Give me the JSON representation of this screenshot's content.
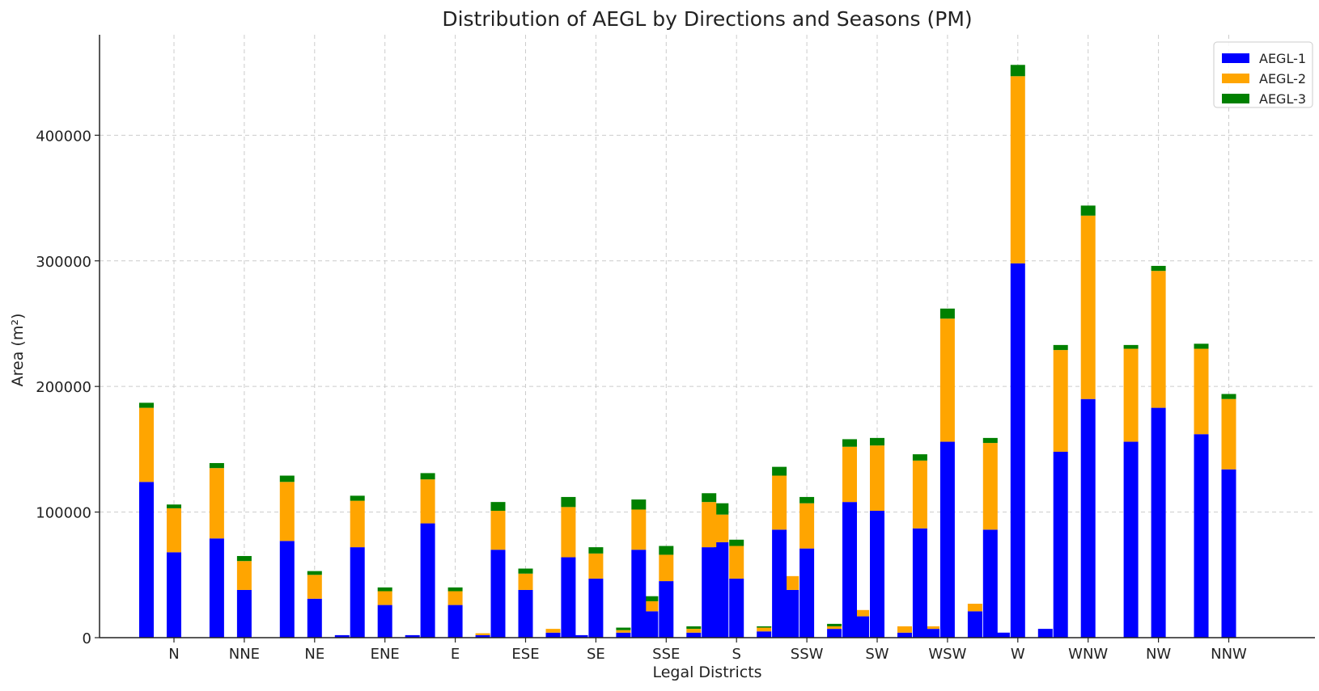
{
  "chart_data": {
    "type": "bar",
    "title": "Distribution of AEGL by Directions and Seasons (PM)",
    "xlabel": "Legal Districts",
    "ylabel": "Area (m²)",
    "ylim": [
      0,
      480000
    ],
    "yticks": [
      0,
      100000,
      200000,
      300000,
      400000
    ],
    "grid": true,
    "legend_position": "top-right",
    "categories": [
      "N",
      "NNE",
      "NE",
      "ENE",
      "E",
      "ESE",
      "SE",
      "SSE",
      "S",
      "SSW",
      "SW",
      "WSW",
      "W",
      "WNW",
      "NW",
      "NNW"
    ],
    "bar_offsets": [
      -1,
      0,
      1,
      2
    ],
    "colors": {
      "AEGL-1": "#0000ff",
      "AEGL-2": "#ffa500",
      "AEGL-3": "#008000"
    },
    "series": [
      {
        "name": "AEGL-1",
        "values": [
          [
            124000,
            68000,
            0,
            0
          ],
          [
            79000,
            38000,
            0,
            0
          ],
          [
            77000,
            31000,
            2000,
            0
          ],
          [
            72000,
            26000,
            2000,
            0
          ],
          [
            91000,
            26000,
            2000,
            0
          ],
          [
            70000,
            38000,
            4000,
            2000
          ],
          [
            64000,
            47000,
            4000,
            21000
          ],
          [
            70000,
            45000,
            4000,
            76000
          ],
          [
            72000,
            47000,
            5000,
            38000
          ],
          [
            86000,
            71000,
            7000,
            17000
          ],
          [
            108000,
            101000,
            4000,
            7000
          ],
          [
            87000,
            156000,
            21000,
            4000
          ],
          [
            86000,
            298000,
            7000,
            0
          ],
          [
            148000,
            190000,
            0,
            0
          ],
          [
            156000,
            183000,
            0,
            0
          ],
          [
            162000,
            134000,
            0,
            0
          ]
        ]
      },
      {
        "name": "AEGL-2",
        "values": [
          [
            59000,
            35000,
            0,
            0
          ],
          [
            56000,
            23000,
            0,
            0
          ],
          [
            47000,
            19000,
            0,
            0
          ],
          [
            37000,
            11000,
            0,
            0
          ],
          [
            35000,
            11000,
            1500,
            0
          ],
          [
            31000,
            13000,
            3000,
            0
          ],
          [
            40000,
            20000,
            2000,
            8000
          ],
          [
            32000,
            21000,
            3000,
            22000
          ],
          [
            36000,
            26000,
            3000,
            11000
          ],
          [
            43000,
            36000,
            2000,
            5000
          ],
          [
            44000,
            52000,
            5000,
            2000
          ],
          [
            54000,
            98000,
            6000,
            0
          ],
          [
            69000,
            149000,
            0,
            0
          ],
          [
            81000,
            146000,
            0,
            0
          ],
          [
            74000,
            109000,
            0,
            0
          ],
          [
            68000,
            56000,
            0,
            0
          ]
        ]
      },
      {
        "name": "AEGL-3",
        "values": [
          [
            4000,
            3000,
            0,
            0
          ],
          [
            4000,
            4000,
            0,
            0
          ],
          [
            5000,
            3000,
            0,
            0
          ],
          [
            4000,
            3000,
            0,
            0
          ],
          [
            5000,
            3000,
            0,
            0
          ],
          [
            7000,
            4000,
            0,
            0
          ],
          [
            8000,
            5000,
            2000,
            4000
          ],
          [
            8000,
            7000,
            2000,
            9000
          ],
          [
            7000,
            5000,
            1000,
            0
          ],
          [
            7000,
            5000,
            2000,
            0
          ],
          [
            6000,
            6000,
            0,
            0
          ],
          [
            5000,
            8000,
            0,
            0
          ],
          [
            4000,
            9000,
            0,
            0
          ],
          [
            4000,
            8000,
            0,
            0
          ],
          [
            3000,
            4000,
            0,
            0
          ],
          [
            4000,
            4000,
            0,
            0
          ]
        ]
      }
    ]
  }
}
